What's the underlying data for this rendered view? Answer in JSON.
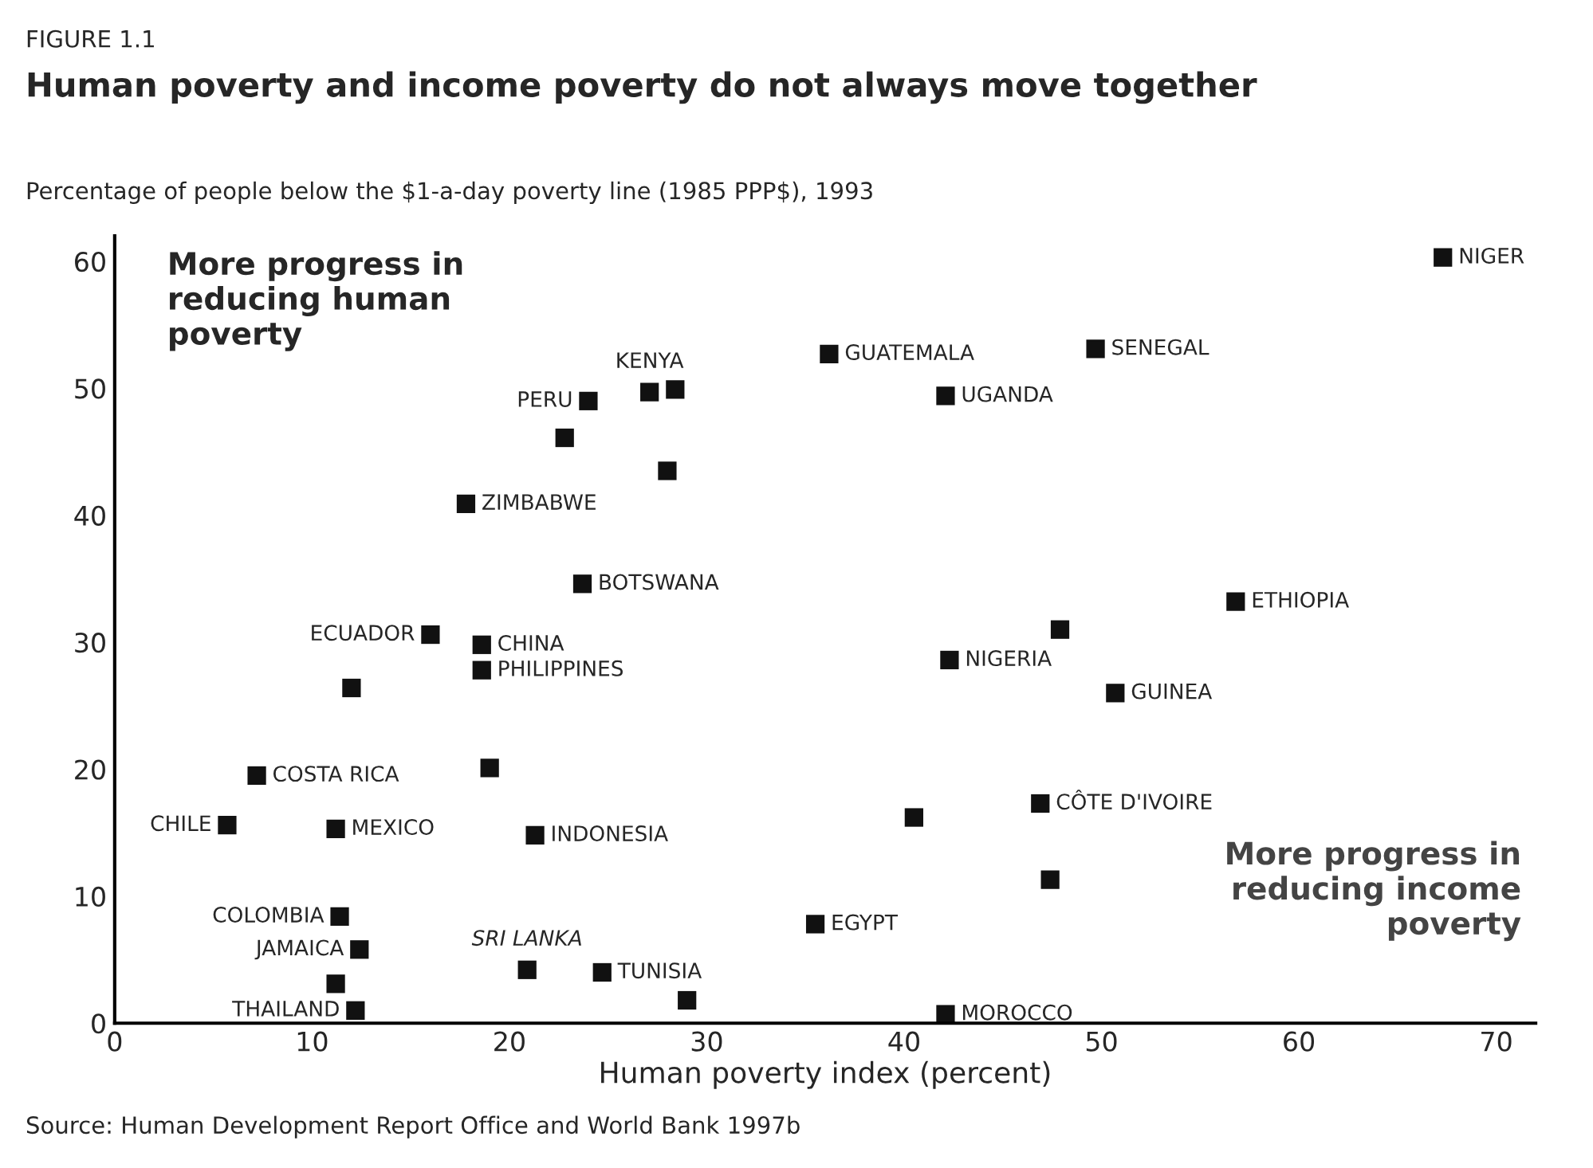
{
  "chart_data": {
    "type": "scatter",
    "title": "Human poverty and income poverty do not always move together",
    "xlabel": "Human poverty index (percent)",
    "ylabel": "Percentage of people below the $1-a-day poverty line (1985 PPP$), 1993",
    "x": [
      67.3,
      36.2,
      49.7,
      42.1,
      27.1,
      28.4,
      24.0,
      22.8,
      28.0,
      17.8,
      23.7,
      16.0,
      18.6,
      18.6,
      12.0,
      56.8,
      47.9,
      42.3,
      50.7,
      19.0,
      7.2,
      5.7,
      11.2,
      21.3,
      40.5,
      46.9,
      47.4,
      11.4,
      35.5,
      12.4,
      11.2,
      20.9,
      24.7,
      29.0,
      12.2,
      42.1
    ],
    "series": [
      {
        "color": "#111111",
        "values": [
          60.3,
          52.7,
          53.1,
          49.4,
          49.7,
          49.9,
          49.0,
          46.1,
          43.5,
          40.9,
          34.6,
          30.6,
          29.8,
          27.8,
          26.4,
          33.2,
          31.0,
          28.6,
          26.0,
          20.1,
          19.5,
          15.6,
          15.3,
          14.8,
          16.2,
          17.3,
          11.3,
          8.4,
          7.8,
          5.8,
          3.1,
          4.2,
          4.0,
          1.8,
          1.0,
          0.7
        ]
      }
    ],
    "marker": "square",
    "xlim": [
      0,
      72
    ],
    "ylim": [
      0,
      62
    ],
    "xticks": [
      0,
      10,
      20,
      30,
      40,
      50,
      60,
      70
    ],
    "yticks": [
      0,
      10,
      20,
      30,
      40,
      50,
      60
    ],
    "grid": false,
    "annotations": [
      "FIGURE 1.1",
      "More progress in\nreducing human\npoverty",
      "More progress in\nreducing income\npoverty",
      "Source: Human Development Report Office and World Bank 1997b",
      {
        "text": "NIGER",
        "x": 67.3,
        "y": 60.3
      },
      {
        "text": "GUATEMALA",
        "x": 36.2,
        "y": 52.7
      },
      {
        "text": "SENEGAL",
        "x": 49.7,
        "y": 53.1
      },
      {
        "text": "UGANDA",
        "x": 42.1,
        "y": 49.4
      },
      {
        "text": "KENYA",
        "x": 27.1,
        "y": 49.7
      },
      {
        "text": "PERU",
        "x": 24.0,
        "y": 49.0
      },
      {
        "text": "ZIMBABWE",
        "x": 17.8,
        "y": 40.9
      },
      {
        "text": "BOTSWANA",
        "x": 23.7,
        "y": 34.6
      },
      {
        "text": "ECUADOR",
        "x": 16.0,
        "y": 30.6
      },
      {
        "text": "CHINA",
        "x": 18.6,
        "y": 29.8
      },
      {
        "text": "PHILIPPINES",
        "x": 18.6,
        "y": 27.8
      },
      {
        "text": "ETHIOPIA",
        "x": 56.8,
        "y": 33.2
      },
      {
        "text": "NIGERIA",
        "x": 42.3,
        "y": 28.6
      },
      {
        "text": "GUINEA",
        "x": 50.7,
        "y": 26.0
      },
      {
        "text": "COSTA RICA",
        "x": 7.2,
        "y": 19.5
      },
      {
        "text": "CHILE",
        "x": 5.7,
        "y": 15.6
      },
      {
        "text": "MEXICO",
        "x": 11.2,
        "y": 15.3
      },
      {
        "text": "INDONESIA",
        "x": 21.3,
        "y": 14.8
      },
      {
        "text": "CÔTE D'IVOIRE",
        "x": 46.9,
        "y": 17.3
      },
      {
        "text": "COLOMBIA",
        "x": 11.4,
        "y": 8.4
      },
      {
        "text": "EGYPT",
        "x": 35.5,
        "y": 7.8
      },
      {
        "text": "JAMAICA",
        "x": 12.4,
        "y": 5.8
      },
      {
        "text": "SRI LANKA",
        "x": 20.9,
        "y": 4.2
      },
      {
        "text": "TUNISIA",
        "x": 24.7,
        "y": 4.0
      },
      {
        "text": "THAILAND",
        "x": 12.2,
        "y": 1.0
      },
      {
        "text": "MOROCCO",
        "x": 42.1,
        "y": 0.7
      }
    ]
  }
}
